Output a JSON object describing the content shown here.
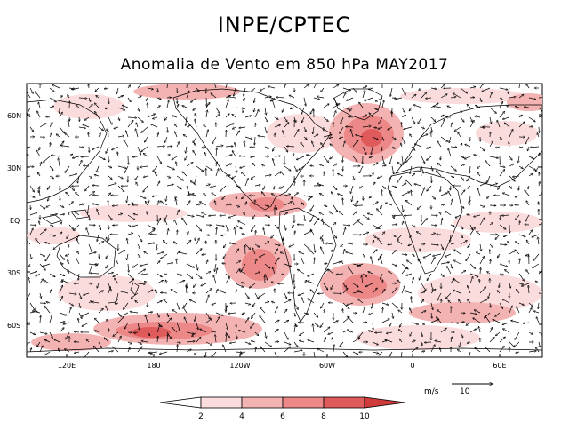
{
  "header": {
    "institution": "INPE/CPTEC",
    "subtitle": "Anomalia de Vento em 850 hPa MAY2017"
  },
  "map": {
    "lat_labels": [
      "60N",
      "30N",
      "EQ",
      "30S",
      "60S"
    ],
    "lon_labels": [
      "120E",
      "180",
      "120W",
      "60W",
      "0",
      "60E"
    ],
    "palette": {
      "land_lines": "#000000",
      "vector_color": "#000000"
    }
  },
  "colorbar": {
    "ticks": [
      "2",
      "4",
      "6",
      "8",
      "10"
    ],
    "colors": [
      "#ffffff",
      "#fbdcdc",
      "#f4b3b3",
      "#ec8888",
      "#df5a5a",
      "#cf3b3b"
    ]
  },
  "reference_vector": {
    "units": "m/s",
    "value": "10"
  }
}
